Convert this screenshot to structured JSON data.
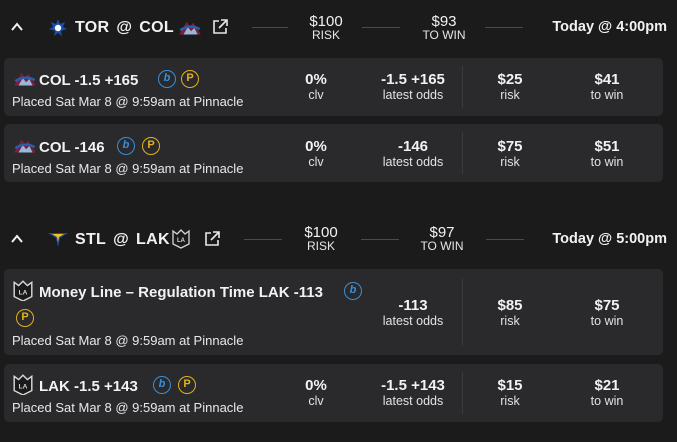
{
  "games": [
    {
      "away": "TOR",
      "at": "@",
      "home": "COL",
      "risk_amount": "$100",
      "risk_label": "RISK",
      "win_amount": "$93",
      "win_label": "TO WIN",
      "time": "Today @ 4:00pm",
      "bets": [
        {
          "title": "COL -1.5 +165",
          "books": [
            "b",
            "P"
          ],
          "placed": "Placed Sat Mar 8 @ 9:59am at Pinnacle",
          "clv": "0%",
          "clv_label": "clv",
          "odds": "-1.5 +165",
          "odds_label": "latest odds",
          "risk": "$25",
          "risk_label": "risk",
          "to_win": "$41",
          "to_win_label": "to win"
        },
        {
          "title": "COL -146",
          "books": [
            "b",
            "P"
          ],
          "placed": "Placed Sat Mar 8 @ 9:59am at Pinnacle",
          "clv": "0%",
          "clv_label": "clv",
          "odds": "-146",
          "odds_label": "latest odds",
          "risk": "$75",
          "risk_label": "risk",
          "to_win": "$51",
          "to_win_label": "to win"
        }
      ]
    },
    {
      "away": "STL",
      "at": "@",
      "home": "LAK",
      "risk_amount": "$100",
      "risk_label": "RISK",
      "win_amount": "$97",
      "win_label": "TO WIN",
      "time": "Today @ 5:00pm",
      "bets": [
        {
          "title": "Money Line – Regulation Time LAK -113",
          "books": [
            "b",
            "P"
          ],
          "placed": "Placed Sat Mar 8 @ 9:59am at Pinnacle",
          "odds": "-113",
          "odds_label": "latest odds",
          "risk": "$85",
          "risk_label": "risk",
          "to_win": "$75",
          "to_win_label": "to win"
        },
        {
          "title": "LAK -1.5 +143",
          "books": [
            "b",
            "P"
          ],
          "placed": "Placed Sat Mar 8 @ 9:59am at Pinnacle",
          "clv": "0%",
          "clv_label": "clv",
          "odds": "-1.5 +143",
          "odds_label": "latest odds",
          "risk": "$15",
          "risk_label": "risk",
          "to_win": "$21",
          "to_win_label": "to win"
        }
      ]
    }
  ],
  "colors": {
    "background": "#1b1b1c",
    "card": "#2a2a2c",
    "book_b": "#3a8fd8",
    "book_p": "#e3b21a"
  },
  "icons": {
    "collapse": "chevron-up-icon",
    "external": "external-link-icon",
    "tor": "maple-leafs-logo-icon",
    "col": "avalanche-logo-icon",
    "stl": "blues-logo-icon",
    "lak": "kings-logo-icon"
  }
}
